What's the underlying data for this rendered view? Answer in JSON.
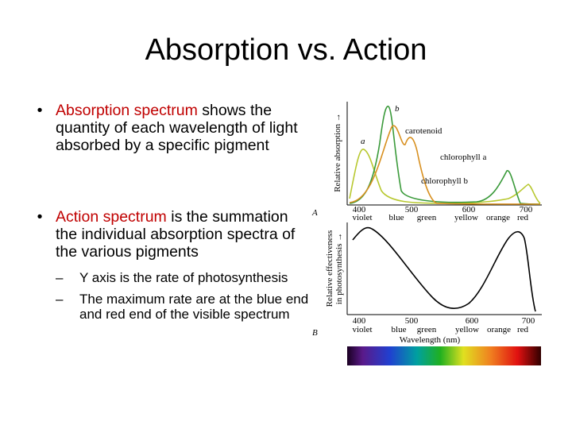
{
  "title": "Absorption vs. Action",
  "bullets": [
    {
      "term": "Absorption spectrum",
      "text": "shows the quantity of each wavelength of light absorbed by a specific pigment"
    },
    {
      "term": "Action spectrum",
      "text": "is the summation the individual absorption spectra of the various pigments",
      "sub": [
        "Y axis is the rate of photosynthesis",
        "The maximum rate are at the blue end and red end of the visible spectrum"
      ]
    }
  ],
  "figure": {
    "panel_a": {
      "letter": "A",
      "y_label": "Relative absorption →",
      "curve_labels": [
        "b",
        "a",
        "carotenoid",
        "chlorophyll a",
        "chlorophyll b"
      ]
    },
    "panel_b": {
      "letter": "B",
      "y_label": [
        "Relative effectiveness",
        "in photosynthesis →"
      ],
      "x_label": "Wavelength (nm)"
    },
    "wavelengths": [
      "400",
      "500",
      "600",
      "700"
    ],
    "colors": [
      "violet",
      "blue",
      "green",
      "yellow",
      "orange",
      "red"
    ]
  }
}
